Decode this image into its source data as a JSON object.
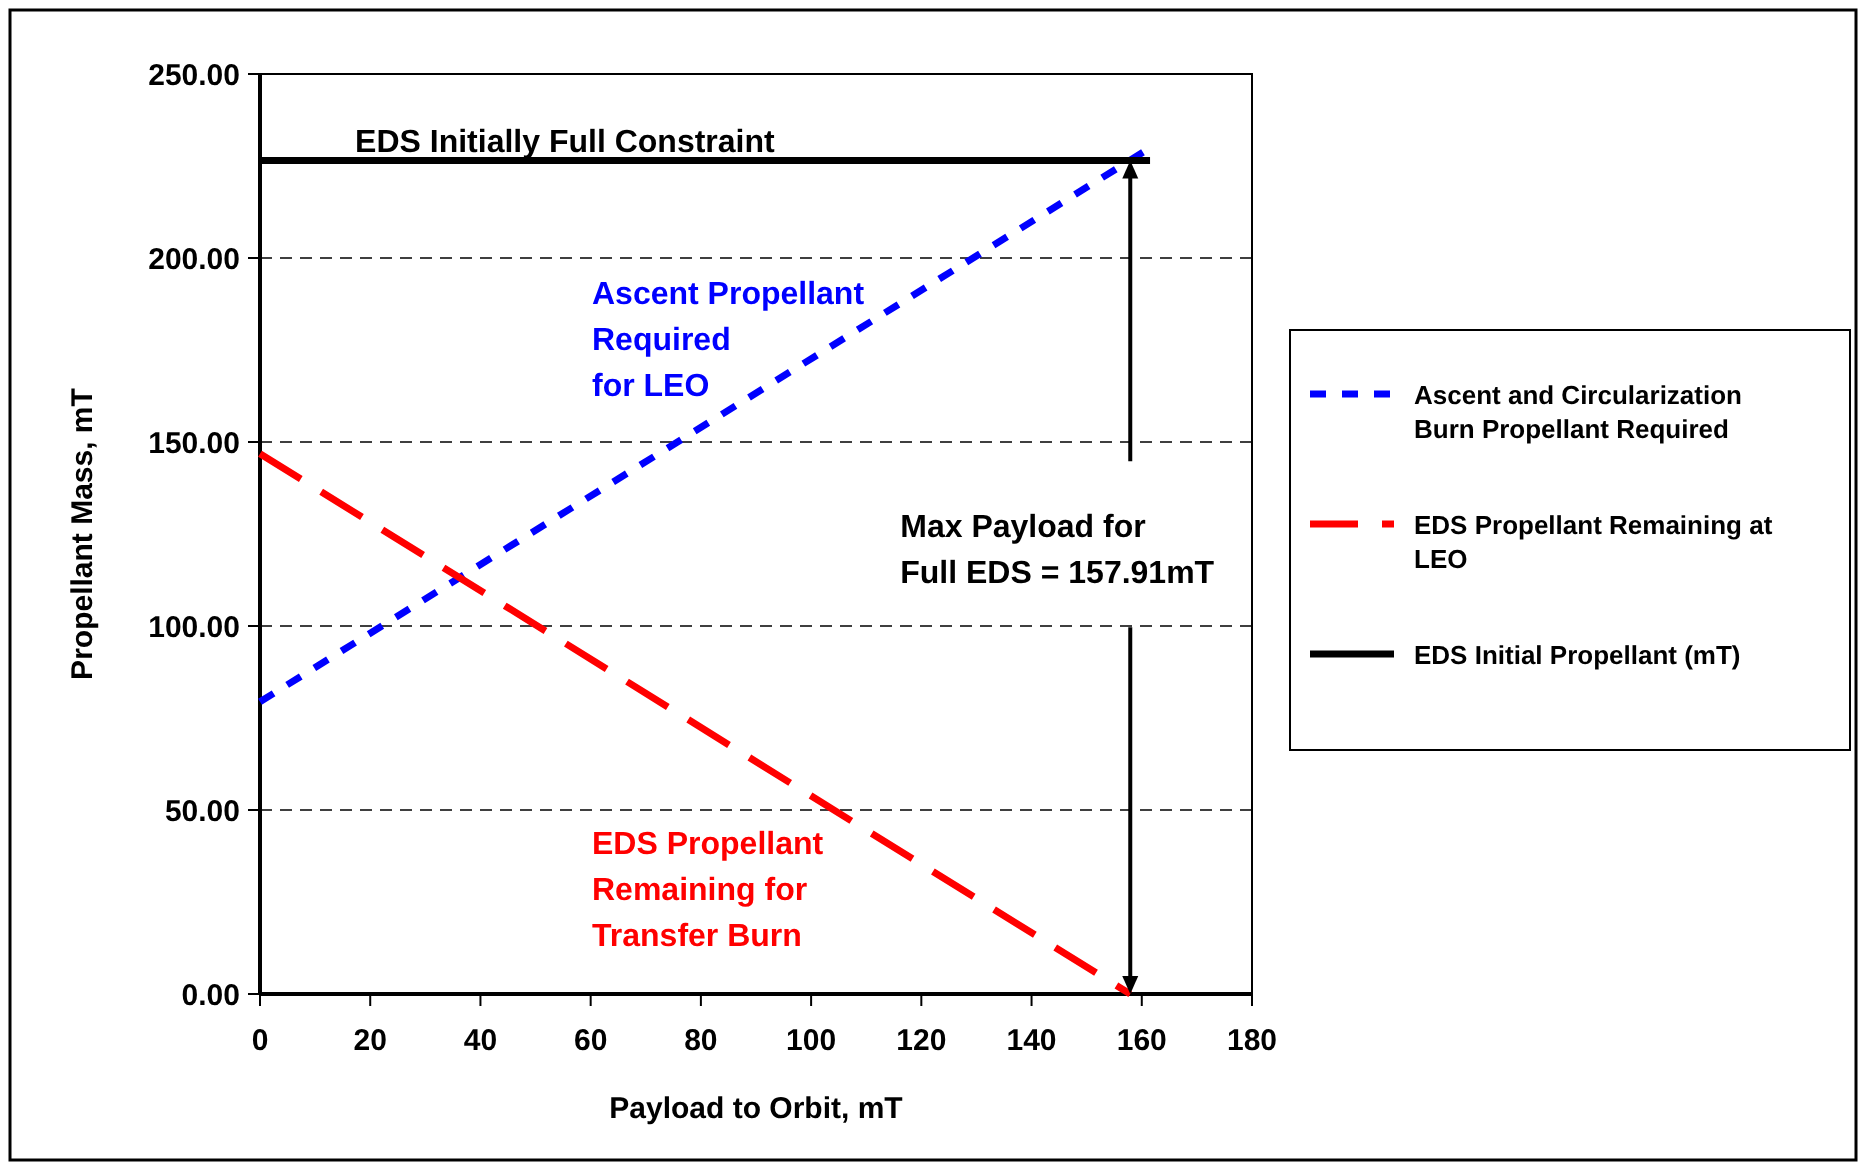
{
  "chart_data": {
    "type": "line",
    "xlabel": "Payload to Orbit, mT",
    "ylabel": "Propellant Mass, mT",
    "xlim": [
      0,
      180
    ],
    "xticks": [
      0,
      20,
      40,
      60,
      80,
      100,
      120,
      140,
      160,
      180
    ],
    "ylim": [
      0,
      250
    ],
    "yticks": [
      {
        "value": 0,
        "label": "0.00"
      },
      {
        "value": 50,
        "label": "50.00"
      },
      {
        "value": 100,
        "label": "100.00"
      },
      {
        "value": 150,
        "label": "150.00"
      },
      {
        "value": 200,
        "label": "200.00"
      },
      {
        "value": 250,
        "label": "250.00"
      }
    ],
    "grid": "y",
    "legend": "right",
    "marker": "none",
    "series": [
      {
        "name": "Ascent and Circularization Burn Propellant Required",
        "color": "#0000ff",
        "line_style": "dotted",
        "x": [
          0,
          160.5
        ],
        "values": [
          79.4,
          229
        ]
      },
      {
        "name": "EDS Propellant Remaining at LEO",
        "color": "#ff0000",
        "line_style": "dashed",
        "x": [
          0,
          157.91
        ],
        "values": [
          146.8,
          0
        ]
      },
      {
        "name": "EDS Initial Propellant (mT)",
        "color": "#000000",
        "line_style": "solid",
        "x": [
          0,
          161.5
        ],
        "values": [
          226.5,
          226.5
        ]
      }
    ],
    "annotations": [
      "Ascent Propellant\nRequired\nfor LEO",
      "EDS Propellant\nRemaining for\nTransfer Burn",
      {
        "text": "EDS Initially Full Constraint",
        "x": 10,
        "y": 226.5
      }
    ],
    "ref_lines": [
      {
        "axis": "x",
        "value": 157.91,
        "label": "Max Payload for\nFull EDS = 157.91mT",
        "color": "#000000"
      }
    ]
  }
}
